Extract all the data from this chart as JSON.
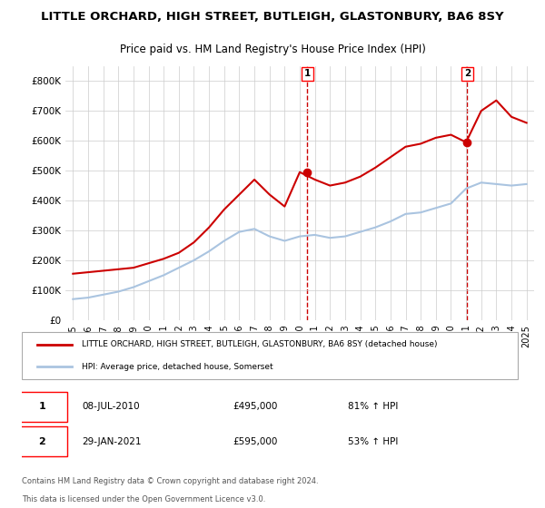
{
  "title": "LITTLE ORCHARD, HIGH STREET, BUTLEIGH, GLASTONBURY, BA6 8SY",
  "subtitle": "Price paid vs. HM Land Registry's House Price Index (HPI)",
  "xlabel": "",
  "ylabel": "",
  "ylim": [
    0,
    850000
  ],
  "yticks": [
    0,
    100000,
    200000,
    300000,
    400000,
    500000,
    600000,
    700000,
    800000
  ],
  "ytick_labels": [
    "£0",
    "£100K",
    "£200K",
    "£300K",
    "£400K",
    "£500K",
    "£600K",
    "£700K",
    "£800K"
  ],
  "hpi_color": "#aac4e0",
  "price_color": "#cc0000",
  "marker_color": "#cc0000",
  "bg_color": "#ffffff",
  "grid_color": "#cccccc",
  "transaction1": {
    "date": "08-JUL-2010",
    "price": 495000,
    "label": "1",
    "pct": "81% ↑ HPI"
  },
  "transaction2": {
    "date": "29-JAN-2021",
    "price": 595000,
    "label": "2",
    "pct": "53% ↑ HPI"
  },
  "legend_line1": "LITTLE ORCHARD, HIGH STREET, BUTLEIGH, GLASTONBURY, BA6 8SY (detached house)",
  "legend_line2": "HPI: Average price, detached house, Somerset",
  "footer1": "Contains HM Land Registry data © Crown copyright and database right 2024.",
  "footer2": "This data is licensed under the Open Government Licence v3.0.",
  "hpi_years": [
    1995,
    1996,
    1997,
    1998,
    1999,
    2000,
    2001,
    2002,
    2003,
    2004,
    2005,
    2006,
    2007,
    2008,
    2009,
    2010,
    2011,
    2012,
    2013,
    2014,
    2015,
    2016,
    2017,
    2018,
    2019,
    2020,
    2021,
    2022,
    2023,
    2024,
    2025
  ],
  "hpi_values": [
    70000,
    75000,
    85000,
    95000,
    110000,
    130000,
    150000,
    175000,
    200000,
    230000,
    265000,
    295000,
    305000,
    280000,
    265000,
    280000,
    285000,
    275000,
    280000,
    295000,
    310000,
    330000,
    355000,
    360000,
    375000,
    390000,
    440000,
    460000,
    455000,
    450000,
    455000
  ],
  "price_years": [
    1995,
    1996,
    1997,
    1998,
    1999,
    2000,
    2001,
    2002,
    2003,
    2004,
    2005,
    2006,
    2007,
    2008,
    2009,
    2010,
    2011,
    2012,
    2013,
    2014,
    2015,
    2016,
    2017,
    2018,
    2019,
    2020,
    2021,
    2022,
    2023,
    2024,
    2025
  ],
  "price_values": [
    155000,
    160000,
    165000,
    170000,
    175000,
    190000,
    205000,
    225000,
    260000,
    310000,
    370000,
    420000,
    470000,
    420000,
    380000,
    495000,
    470000,
    450000,
    460000,
    480000,
    510000,
    545000,
    580000,
    590000,
    610000,
    620000,
    595000,
    700000,
    735000,
    680000,
    660000
  ]
}
